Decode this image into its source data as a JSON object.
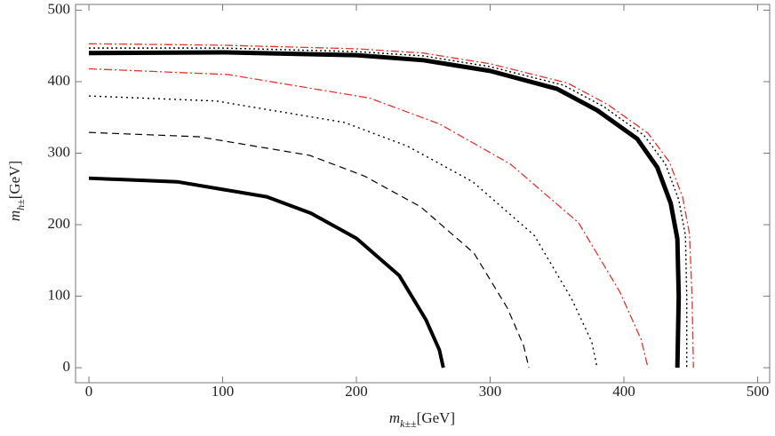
{
  "chart_data": {
    "type": "line",
    "xlabel": {
      "symbol": "m",
      "subscript": "k±±",
      "unit": "[GeV]"
    },
    "ylabel": {
      "symbol": "m",
      "subscript": "h±",
      "unit": "[GeV]"
    },
    "xlim": [
      -10,
      509
    ],
    "ylim": [
      -21,
      508
    ],
    "xticks": [
      0,
      100,
      200,
      300,
      400,
      500
    ],
    "yticks": [
      0,
      100,
      200,
      300,
      400,
      500
    ],
    "series": [
      {
        "color": "#000000",
        "width": 4,
        "dash": "none",
        "x": [
          0,
          66,
          133,
          166,
          200,
          232,
          252,
          262,
          265
        ],
        "values": [
          265,
          260,
          239,
          216,
          181,
          129,
          67,
          25,
          0
        ]
      },
      {
        "color": "#000000",
        "width": 1.2,
        "dash": "8,5",
        "x": [
          0,
          82,
          165,
          206,
          248,
          288,
          313,
          325,
          329
        ],
        "values": [
          329,
          323,
          297,
          268,
          225,
          160,
          83,
          31,
          0
        ]
      },
      {
        "color": "#000000",
        "width": 1.4,
        "dash": "2,4",
        "x": [
          0,
          95,
          191,
          238,
          287,
          333,
          361,
          376,
          380
        ],
        "values": [
          380,
          373,
          343,
          310,
          260,
          185,
          96,
          36,
          0
        ]
      },
      {
        "color": "#e8322e",
        "width": 1.3,
        "dash": "9,3,2,3",
        "x": [
          0,
          104,
          210,
          262,
          315,
          366,
          397,
          413,
          418
        ],
        "values": [
          418,
          410,
          377,
          341,
          285,
          203,
          106,
          39,
          0
        ]
      },
      {
        "color": "#000000",
        "width": 5,
        "dash": "none",
        "x": [
          0,
          100,
          200,
          250,
          300,
          350,
          380,
          410,
          425,
          435,
          440,
          441,
          440
        ],
        "values": [
          440,
          441,
          437,
          430,
          415,
          390,
          360,
          320,
          280,
          230,
          180,
          100,
          0
        ]
      },
      {
        "color": "#000000",
        "width": 1.4,
        "dash": "2,3",
        "x": [
          0,
          100,
          200,
          250,
          300,
          355,
          385,
          415,
          431,
          441,
          446,
          447,
          447
        ],
        "values": [
          447,
          447,
          442,
          436,
          421,
          395,
          365,
          325,
          285,
          235,
          185,
          100,
          0
        ]
      },
      {
        "color": "#e8322e",
        "width": 1.3,
        "dash": "9,3,2,3",
        "x": [
          0,
          100,
          200,
          250,
          300,
          358,
          388,
          418,
          434,
          444,
          449,
          451,
          452
        ],
        "values": [
          453,
          451,
          446,
          440,
          425,
          398,
          368,
          328,
          288,
          238,
          188,
          100,
          0
        ]
      }
    ]
  }
}
